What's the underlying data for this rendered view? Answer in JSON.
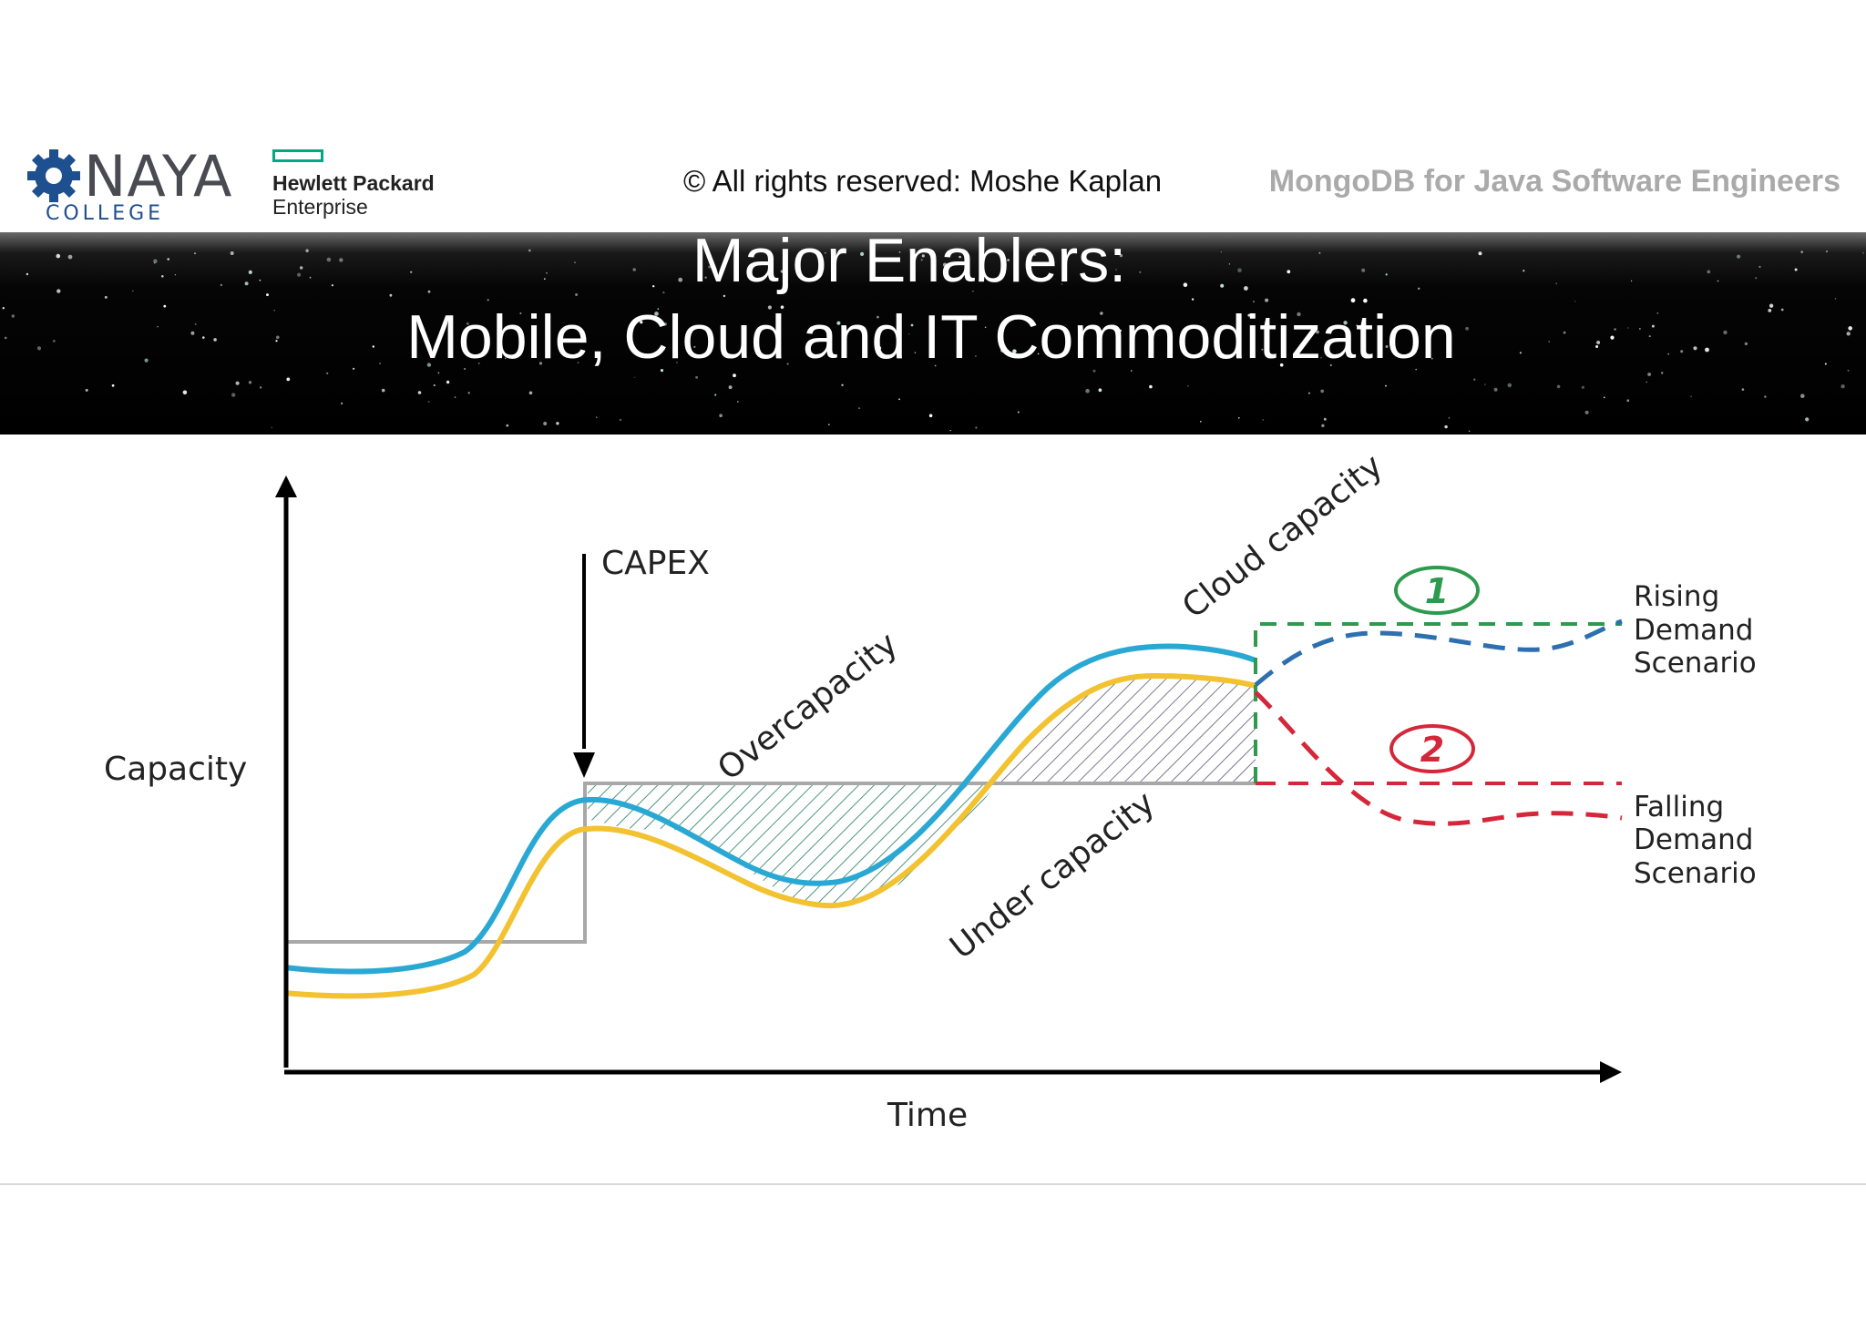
{
  "header": {
    "logo_naya": {
      "word": "NAYA",
      "subtitle": "COLLEGE",
      "icon": "gear-icon",
      "color": "#1e4f8f"
    },
    "logo_hpe": {
      "line1": "Hewlett Packard",
      "line2": "Enterprise",
      "accent": "#01a982"
    },
    "copyright": "© All rights reserved: Moshe Kaplan",
    "course_title": "MongoDB for Java Software Engineers"
  },
  "slide": {
    "title_line1": "Major Enablers:",
    "title_line2": "Mobile, Cloud and IT Commoditization"
  },
  "diagram": {
    "y_axis_label": "Capacity",
    "x_axis_label": "Time",
    "capex_label": "CAPEX",
    "overcapacity_label": "Overcapacity",
    "under_capacity_label": "Under capacity",
    "cloud_capacity_label": "Cloud capacity",
    "scenario1_number": "1",
    "scenario2_number": "2",
    "rising_scenario": [
      "Rising",
      "Demand",
      "Scenario"
    ],
    "falling_scenario": [
      "Falling",
      "Demand",
      "Scenario"
    ],
    "colors": {
      "cloud_line": "#2aa8d4",
      "demand_line": "#f2c230",
      "fixed_capacity": "#a8a8a8",
      "rising_dash": "#2e6fb0",
      "rising_box": "#2e9a4e",
      "falling_dash": "#d4283a"
    }
  }
}
